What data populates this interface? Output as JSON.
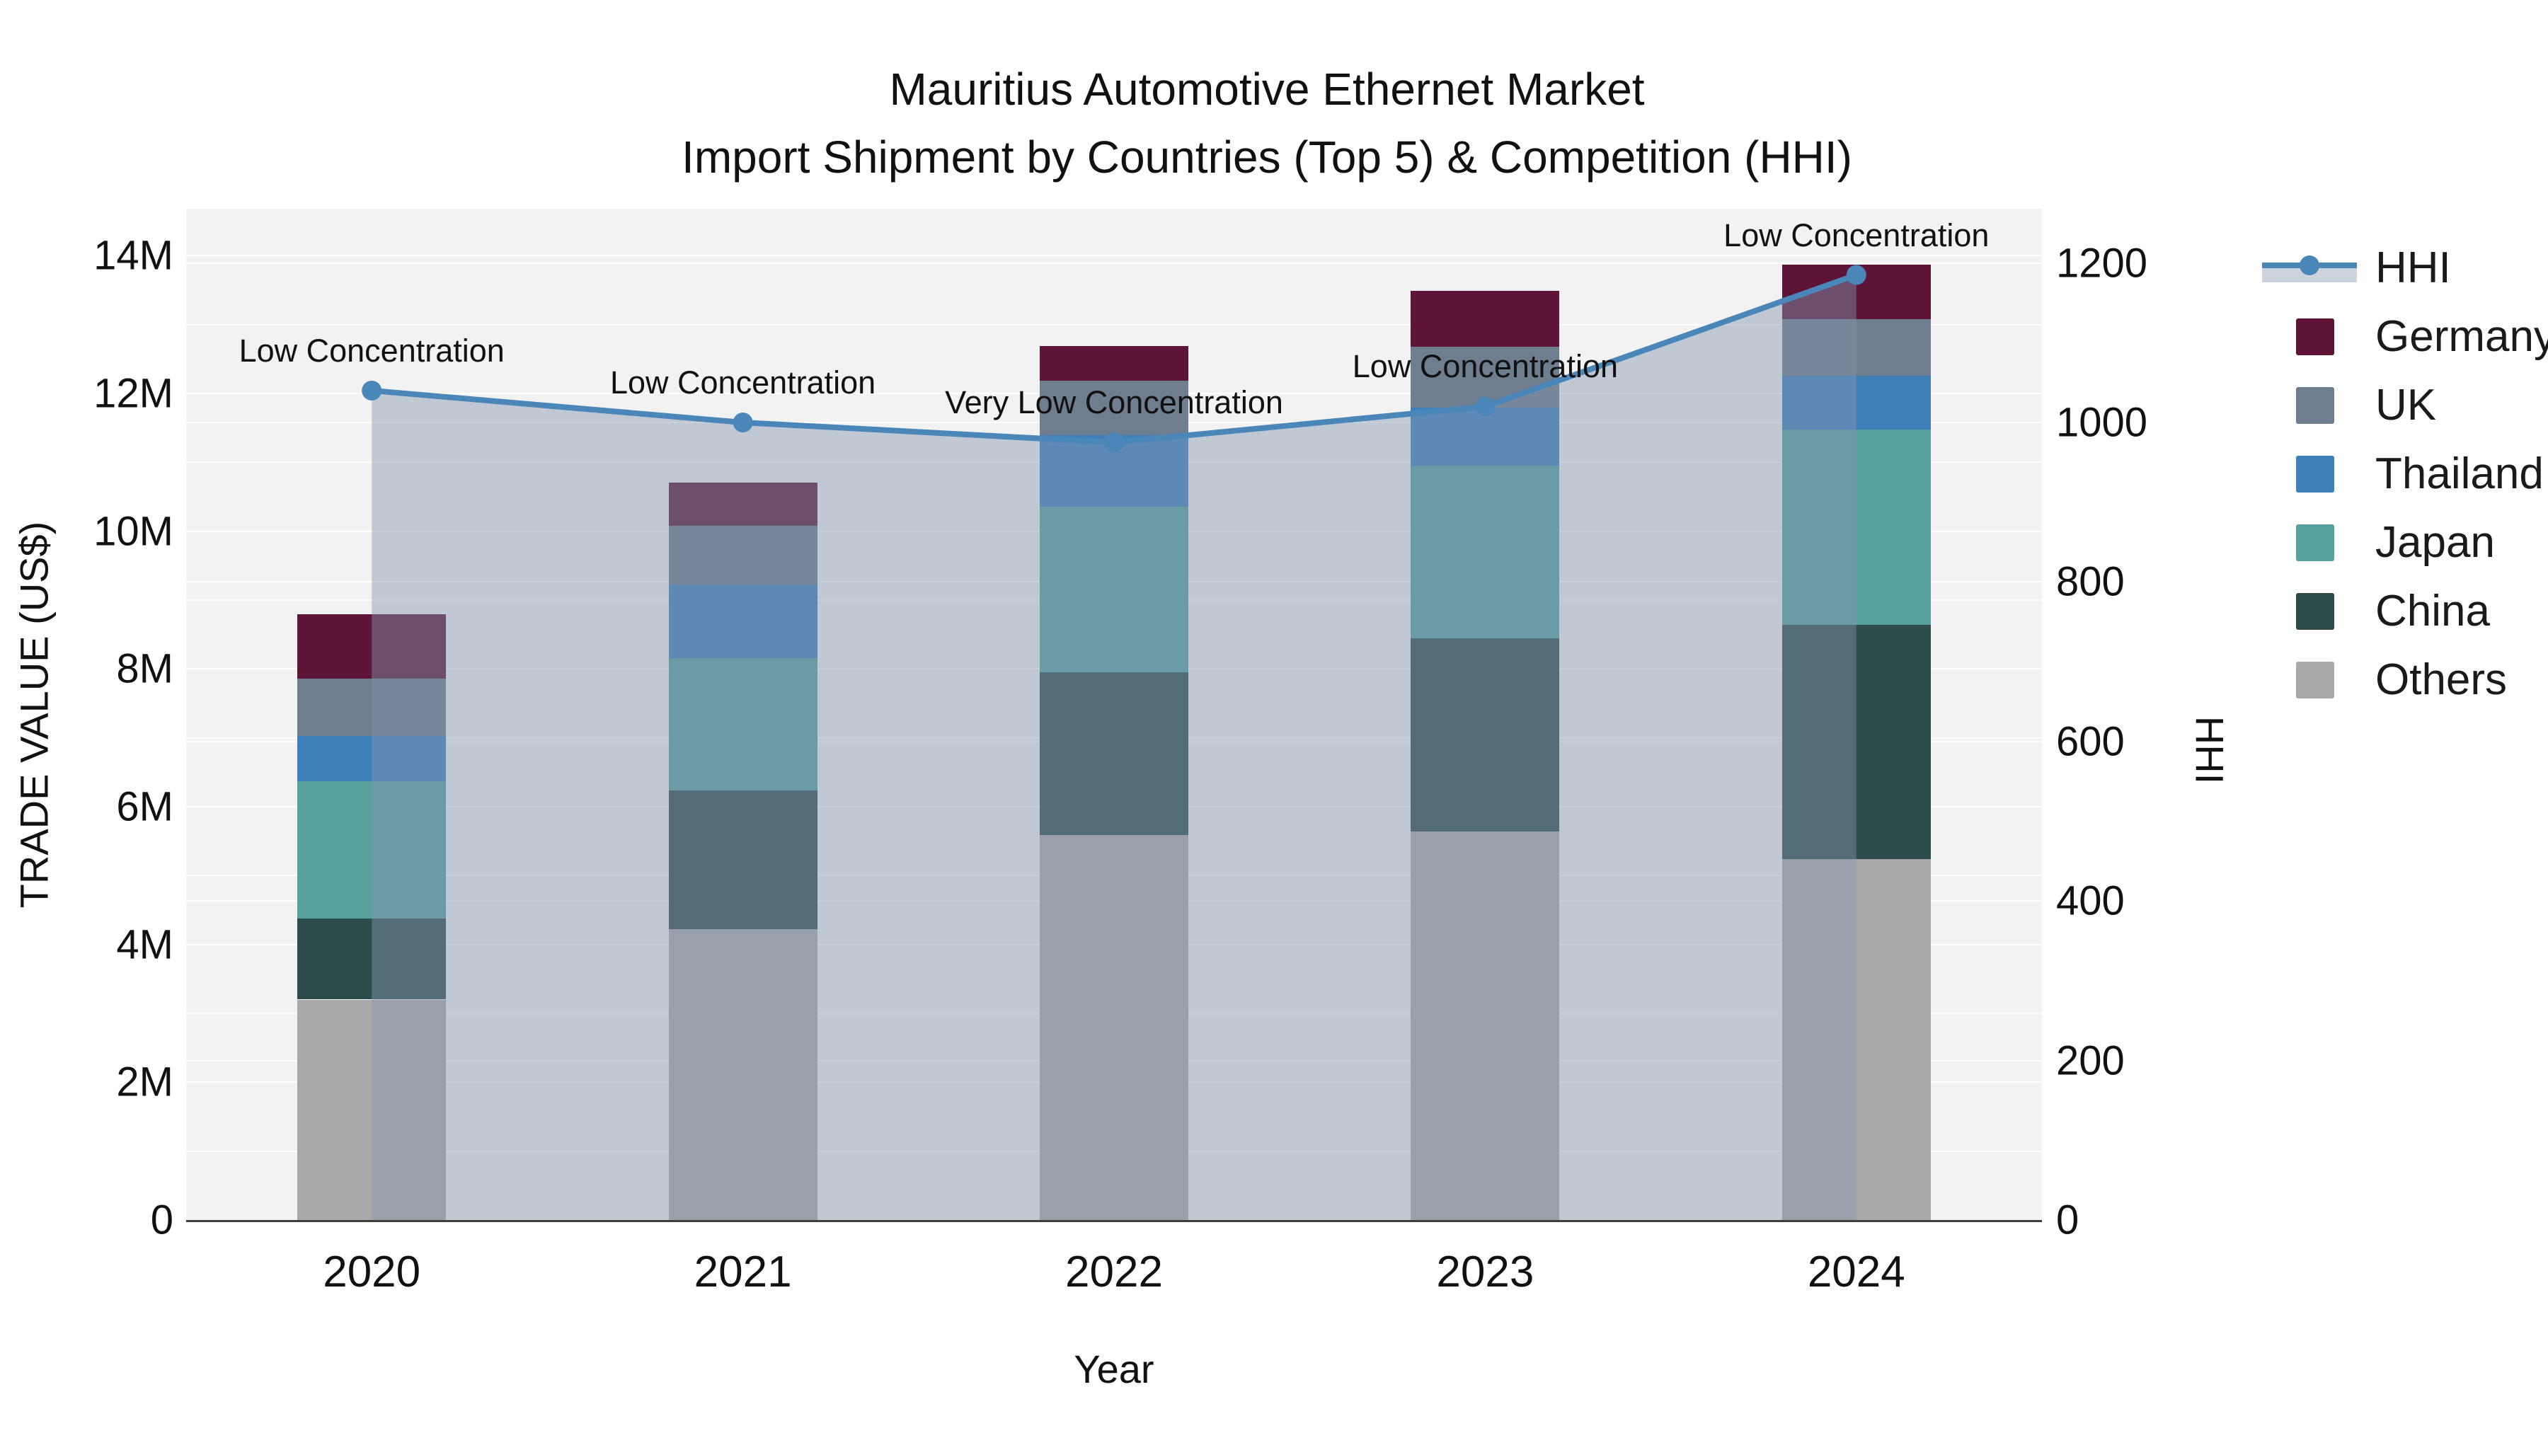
{
  "title": {
    "line1": "Mauritius Automotive Ethernet Market",
    "line2": "Import Shipment by Countries (Top 5) & Competition (HHI)"
  },
  "axes": {
    "left": {
      "title": "TRADE VALUE (US$)",
      "tick_labels": [
        "0",
        "2M",
        "4M",
        "6M",
        "8M",
        "10M",
        "12M",
        "14M"
      ],
      "tick_values": [
        0,
        2,
        4,
        6,
        8,
        10,
        12,
        14
      ],
      "range_musd": [
        0,
        14.68
      ],
      "gridline_step_musd": 1
    },
    "right": {
      "title": "HHI",
      "tick_labels": [
        "0",
        "200",
        "400",
        "600",
        "800",
        "1000",
        "1200"
      ],
      "tick_values": [
        0,
        200,
        400,
        600,
        800,
        1000,
        1200
      ],
      "range": [
        0,
        1268
      ],
      "gridline_step": 200
    },
    "x": {
      "title": "Year",
      "categories": [
        "2020",
        "2021",
        "2022",
        "2023",
        "2024"
      ]
    }
  },
  "legend": {
    "items": [
      {
        "label": "HHI",
        "type": "line",
        "color": "#4a86b8",
        "band_color": "#ccd3dd"
      },
      {
        "label": "Germany",
        "type": "swatch",
        "color": "#5e1437"
      },
      {
        "label": "UK",
        "type": "swatch",
        "color": "#6e7e8f"
      },
      {
        "label": "Thailand",
        "type": "swatch",
        "color": "#4080b8"
      },
      {
        "label": "Japan",
        "type": "swatch",
        "color": "#58a09e"
      },
      {
        "label": "China",
        "type": "swatch",
        "color": "#2d4c49"
      },
      {
        "label": "Others",
        "type": "swatch",
        "color": "#a9a9a9"
      }
    ]
  },
  "chart_data": {
    "type": "bar+line",
    "title": "Mauritius Automotive Ethernet Market — Import Shipment by Countries (Top 5) & Competition (HHI)",
    "categories": [
      "2020",
      "2021",
      "2022",
      "2023",
      "2024"
    ],
    "stack_order_bottom_to_top": [
      "Others",
      "China",
      "Japan",
      "Thailand",
      "UK",
      "Germany"
    ],
    "series": [
      {
        "name": "Others",
        "type": "bar",
        "color": "#a9a9a9",
        "values_musd": [
          3.2,
          4.22,
          5.59,
          5.64,
          5.24
        ]
      },
      {
        "name": "China",
        "type": "bar",
        "color": "#2d4c49",
        "values_musd": [
          1.18,
          2.02,
          2.36,
          2.8,
          3.4
        ]
      },
      {
        "name": "Japan",
        "type": "bar",
        "color": "#58a09e",
        "values_musd": [
          1.99,
          1.92,
          2.4,
          2.51,
          2.83
        ]
      },
      {
        "name": "Thailand",
        "type": "bar",
        "color": "#4080b8",
        "values_musd": [
          0.66,
          1.07,
          1.04,
          0.84,
          0.79
        ]
      },
      {
        "name": "UK",
        "type": "bar",
        "color": "#6e7e8f",
        "values_musd": [
          0.83,
          0.85,
          0.79,
          0.89,
          0.82
        ]
      },
      {
        "name": "Germany",
        "type": "bar",
        "color": "#5e1437",
        "values_musd": [
          0.93,
          0.62,
          0.51,
          0.81,
          0.79
        ]
      }
    ],
    "bar_totals_musd": [
      8.79,
      10.7,
      12.69,
      13.49,
      13.87
    ],
    "line": {
      "name": "HHI",
      "axis": "right",
      "color": "#4a86b8",
      "fill_color": "rgba(131,149,176,0.45)",
      "values": [
        1040,
        1000,
        975,
        1020,
        1185
      ]
    },
    "annotations": [
      {
        "category": "2020",
        "text": "Low Concentration"
      },
      {
        "category": "2021",
        "text": "Low Concentration"
      },
      {
        "category": "2022",
        "text": "Very Low Concentration"
      },
      {
        "category": "2023",
        "text": "Low Concentration"
      },
      {
        "category": "2024",
        "text": "Low Concentration"
      }
    ],
    "xlabel": "Year",
    "ylabel_left": "TRADE VALUE (US$)",
    "ylabel_right": "HHI",
    "ylim_left_musd": [
      0,
      14.68
    ],
    "ylim_right": [
      0,
      1268
    ],
    "legend_position": "right",
    "grid": true,
    "plot_background": "#f2f2f2"
  },
  "colors": {
    "hhi_line": "#4a86b8",
    "hhi_area_fill": "rgba(131,149,176,0.45)",
    "plot_background": "#f2f2f2",
    "page_background": "#ffffff",
    "gridline": "rgba(255,255,255,0.95)",
    "axis_line": "#3f3f3f"
  }
}
